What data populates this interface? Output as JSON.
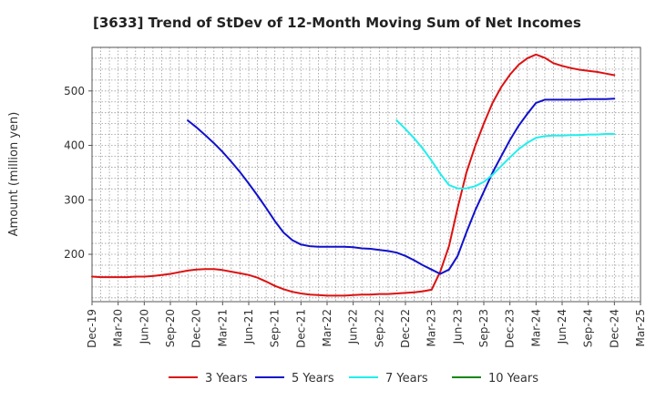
{
  "chart_data": {
    "type": "line",
    "title": "[3633]  Trend of StDev of 12-Month Moving Sum of Net Incomes",
    "xlabel": "",
    "ylabel": "Amount (million yen)",
    "x_ticks": [
      "Dec-19",
      "Mar-20",
      "Jun-20",
      "Sep-20",
      "Dec-20",
      "Mar-21",
      "Jun-21",
      "Sep-21",
      "Dec-21",
      "Mar-22",
      "Jun-22",
      "Sep-22",
      "Dec-22",
      "Mar-23",
      "Jun-23",
      "Sep-23",
      "Dec-23",
      "Mar-24",
      "Jun-24",
      "Sep-24",
      "Dec-24",
      "Mar-25"
    ],
    "y_ticks": [
      200,
      300,
      400,
      500
    ],
    "ylim": [
      113,
      580
    ],
    "grid": true,
    "legend_position": "bottom",
    "series": [
      {
        "name": "3 Years",
        "color": "#dd1111",
        "points": [
          [
            "Dec-19",
            159
          ],
          [
            "Jan-20",
            158
          ],
          [
            "Feb-20",
            158
          ],
          [
            "Mar-20",
            158
          ],
          [
            "Apr-20",
            158
          ],
          [
            "May-20",
            159
          ],
          [
            "Jun-20",
            159
          ],
          [
            "Jul-20",
            160
          ],
          [
            "Aug-20",
            162
          ],
          [
            "Sep-20",
            164
          ],
          [
            "Oct-20",
            167
          ],
          [
            "Nov-20",
            170
          ],
          [
            "Dec-20",
            172
          ],
          [
            "Jan-21",
            173
          ],
          [
            "Feb-21",
            173
          ],
          [
            "Mar-21",
            171
          ],
          [
            "Apr-21",
            168
          ],
          [
            "May-21",
            165
          ],
          [
            "Jun-21",
            162
          ],
          [
            "Jul-21",
            157
          ],
          [
            "Aug-21",
            150
          ],
          [
            "Sep-21",
            142
          ],
          [
            "Oct-21",
            136
          ],
          [
            "Nov-21",
            131
          ],
          [
            "Dec-21",
            128
          ],
          [
            "Jan-22",
            126
          ],
          [
            "Feb-22",
            125
          ],
          [
            "Mar-22",
            124
          ],
          [
            "Apr-22",
            124
          ],
          [
            "May-22",
            124
          ],
          [
            "Jun-22",
            125
          ],
          [
            "Jul-22",
            126
          ],
          [
            "Aug-22",
            126
          ],
          [
            "Sep-22",
            127
          ],
          [
            "Oct-22",
            127
          ],
          [
            "Nov-22",
            128
          ],
          [
            "Dec-22",
            129
          ],
          [
            "Jan-23",
            130
          ],
          [
            "Feb-23",
            132
          ],
          [
            "Mar-23",
            135
          ],
          [
            "Apr-23",
            168
          ],
          [
            "May-23",
            215
          ],
          [
            "Jun-23",
            285
          ],
          [
            "Jul-23",
            350
          ],
          [
            "Aug-23",
            398
          ],
          [
            "Sep-23",
            440
          ],
          [
            "Oct-23",
            478
          ],
          [
            "Nov-23",
            507
          ],
          [
            "Dec-23",
            530
          ],
          [
            "Jan-24",
            548
          ],
          [
            "Feb-24",
            560
          ],
          [
            "Mar-24",
            567
          ],
          [
            "Apr-24",
            561
          ],
          [
            "May-24",
            551
          ],
          [
            "Jun-24",
            546
          ],
          [
            "Jul-24",
            542
          ],
          [
            "Aug-24",
            539
          ],
          [
            "Sep-24",
            537
          ],
          [
            "Oct-24",
            535
          ],
          [
            "Nov-24",
            532
          ],
          [
            "Dec-24",
            529
          ]
        ]
      },
      {
        "name": "5 Years",
        "color": "#1111cc",
        "points": [
          [
            "Nov-20",
            446
          ],
          [
            "Dec-20",
            433
          ],
          [
            "Jan-21",
            419
          ],
          [
            "Feb-21",
            404
          ],
          [
            "Mar-21",
            388
          ],
          [
            "Apr-21",
            370
          ],
          [
            "May-21",
            351
          ],
          [
            "Jun-21",
            330
          ],
          [
            "Jul-21",
            308
          ],
          [
            "Aug-21",
            285
          ],
          [
            "Sep-21",
            261
          ],
          [
            "Oct-21",
            240
          ],
          [
            "Nov-21",
            226
          ],
          [
            "Dec-21",
            218
          ],
          [
            "Jan-22",
            215
          ],
          [
            "Feb-22",
            214
          ],
          [
            "Mar-22",
            214
          ],
          [
            "Apr-22",
            214
          ],
          [
            "May-22",
            214
          ],
          [
            "Jun-22",
            213
          ],
          [
            "Jul-22",
            211
          ],
          [
            "Aug-22",
            210
          ],
          [
            "Sep-22",
            208
          ],
          [
            "Oct-22",
            206
          ],
          [
            "Nov-22",
            203
          ],
          [
            "Dec-22",
            197
          ],
          [
            "Jan-23",
            189
          ],
          [
            "Feb-23",
            180
          ],
          [
            "Mar-23",
            172
          ],
          [
            "Apr-23",
            164
          ],
          [
            "May-23",
            172
          ],
          [
            "Jun-23",
            197
          ],
          [
            "Jul-23",
            240
          ],
          [
            "Aug-23",
            280
          ],
          [
            "Sep-23",
            315
          ],
          [
            "Oct-23",
            350
          ],
          [
            "Nov-23",
            380
          ],
          [
            "Dec-23",
            410
          ],
          [
            "Jan-24",
            436
          ],
          [
            "Feb-24",
            458
          ],
          [
            "Mar-24",
            478
          ],
          [
            "Apr-24",
            484
          ],
          [
            "May-24",
            484
          ],
          [
            "Jun-24",
            484
          ],
          [
            "Jul-24",
            484
          ],
          [
            "Aug-24",
            484
          ],
          [
            "Sep-24",
            485
          ],
          [
            "Oct-24",
            485
          ],
          [
            "Nov-24",
            485
          ],
          [
            "Dec-24",
            486
          ]
        ]
      },
      {
        "name": "7 Years",
        "color": "#22eeee",
        "points": [
          [
            "Nov-22",
            446
          ],
          [
            "Dec-22",
            430
          ],
          [
            "Jan-23",
            413
          ],
          [
            "Feb-23",
            394
          ],
          [
            "Mar-23",
            372
          ],
          [
            "Apr-23",
            348
          ],
          [
            "May-23",
            327
          ],
          [
            "Jun-23",
            321
          ],
          [
            "Jul-23",
            321
          ],
          [
            "Aug-23",
            325
          ],
          [
            "Sep-23",
            333
          ],
          [
            "Oct-23",
            346
          ],
          [
            "Nov-23",
            362
          ],
          [
            "Dec-23",
            378
          ],
          [
            "Jan-24",
            393
          ],
          [
            "Feb-24",
            405
          ],
          [
            "Mar-24",
            414
          ],
          [
            "Apr-24",
            417
          ],
          [
            "May-24",
            418
          ],
          [
            "Jun-24",
            418
          ],
          [
            "Jul-24",
            419
          ],
          [
            "Aug-24",
            419
          ],
          [
            "Sep-24",
            420
          ],
          [
            "Oct-24",
            420
          ],
          [
            "Nov-24",
            421
          ],
          [
            "Dec-24",
            421
          ]
        ]
      },
      {
        "name": "10 Years",
        "color": "#118811",
        "points": []
      }
    ]
  }
}
